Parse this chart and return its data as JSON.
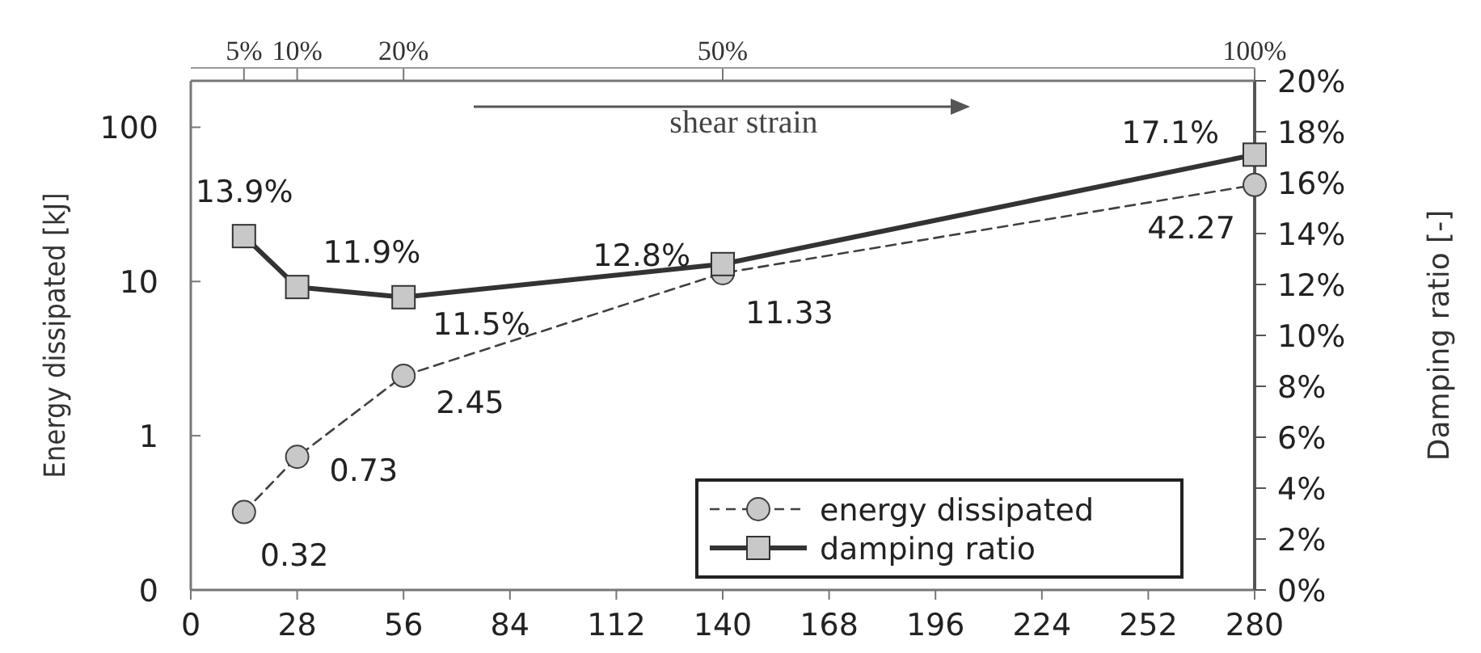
{
  "chart_data": {
    "type": "line",
    "xlabel": null,
    "ylabel": "Energy dissipated [kJ]",
    "y2label": "Damping ratio [-]",
    "x": [
      14,
      28,
      56,
      140,
      280
    ],
    "xlim": [
      0,
      280
    ],
    "xticks": [
      0,
      28,
      56,
      84,
      112,
      140,
      168,
      196,
      224,
      252,
      280
    ],
    "x2lim": [
      0,
      100
    ],
    "x2ticks": [
      {
        "value": 5,
        "label": "5%"
      },
      {
        "value": 10,
        "label": "10%"
      },
      {
        "value": 20,
        "label": "20%"
      },
      {
        "value": 50,
        "label": "50%"
      },
      {
        "value": 100,
        "label": "100%"
      }
    ],
    "log": "y",
    "ylim": [
      0.1,
      200
    ],
    "yticks": [
      {
        "value": 0.1,
        "label": "0"
      },
      1,
      10,
      100
    ],
    "y2lim": [
      0,
      20
    ],
    "y2ticks": [
      {
        "value": 0,
        "label": "0%"
      },
      {
        "value": 2,
        "label": "2%"
      },
      {
        "value": 4,
        "label": "4%"
      },
      {
        "value": 6,
        "label": "6%"
      },
      {
        "value": 8,
        "label": "8%"
      },
      {
        "value": 10,
        "label": "10%"
      },
      {
        "value": 12,
        "label": "12%"
      },
      {
        "value": 14,
        "label": "14%"
      },
      {
        "value": 16,
        "label": "16%"
      },
      {
        "value": 18,
        "label": "18%"
      },
      {
        "value": 20,
        "label": "20%"
      }
    ],
    "series": [
      {
        "name": "energy dissipated",
        "color": "#404040",
        "marker": "circle",
        "line_style": "dashed",
        "values": [
          0.32,
          0.73,
          2.45,
          11.33,
          42.27
        ],
        "value_labels": [
          "0.32",
          "0.73",
          "2.45",
          "11.33",
          "42.27"
        ]
      },
      {
        "name": "damping ratio",
        "color": "#333333",
        "marker": "square",
        "line_style": "solid",
        "axis": "y2",
        "values": [
          13.9,
          11.9,
          11.5,
          12.8,
          17.1
        ],
        "value_labels": [
          "13.9%",
          "11.9%",
          "11.5%",
          "12.8%",
          "17.1%"
        ]
      }
    ],
    "annotations": [
      "shear strain"
    ],
    "grid": false,
    "legend": "bottom right"
  }
}
